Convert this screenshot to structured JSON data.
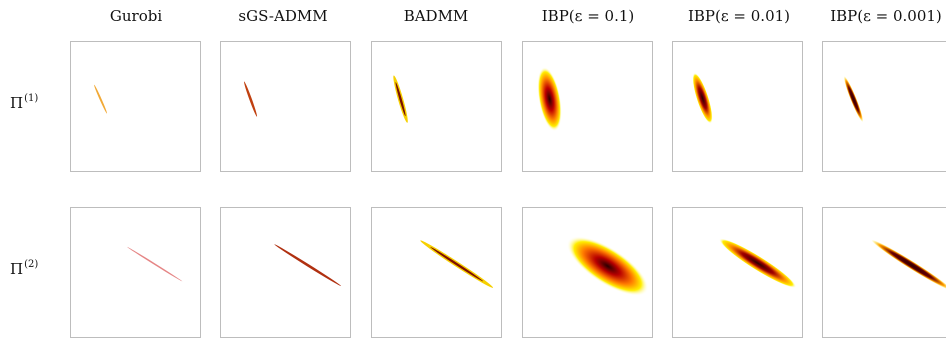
{
  "columns": [
    {
      "title": "Gurobi"
    },
    {
      "title": "sGS-ADMM"
    },
    {
      "title": "BADMM"
    },
    {
      "title": "IBP(ε = 0.1)"
    },
    {
      "title": "IBP(ε = 0.01)"
    },
    {
      "title": "IBP(ε = 0.001)"
    }
  ],
  "rows": [
    {
      "symbol": "Π",
      "superscript": "(1)"
    },
    {
      "symbol": "Π",
      "superscript": "(2)"
    }
  ],
  "colormap": {
    "low": "#ffff00",
    "mid": "#e06000",
    "high": "#2a0000"
  }
}
